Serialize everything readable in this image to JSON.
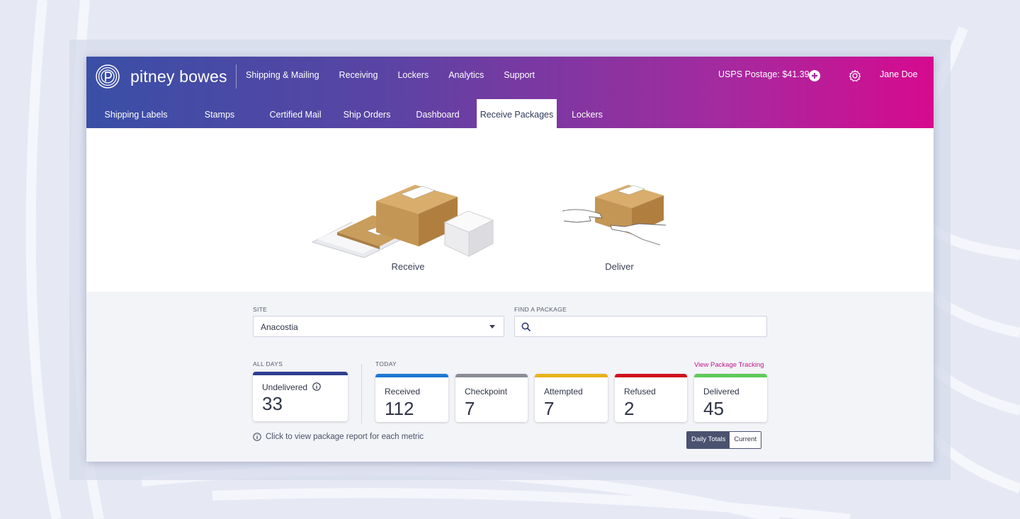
{
  "brand": {
    "name": "pitney bowes"
  },
  "top_nav": [
    "Shipping & Mailing",
    "Receiving",
    "Lockers",
    "Analytics",
    "Support"
  ],
  "postage": "USPS Postage: $41.39",
  "user": "Jane Doe",
  "sub_tabs": [
    {
      "label": "Shipping Labels",
      "active": false
    },
    {
      "label": "Stamps",
      "active": false
    },
    {
      "label": "Certified Mail",
      "active": false
    },
    {
      "label": "Ship Orders",
      "active": false
    },
    {
      "label": "Dashboard",
      "active": false
    },
    {
      "label": "Receive Packages",
      "active": true
    },
    {
      "label": "Lockers",
      "active": false
    }
  ],
  "actions": {
    "receive": "Receive",
    "deliver": "Deliver"
  },
  "site": {
    "label": "SITE",
    "value": "Anacostia"
  },
  "find": {
    "label": "FIND A PACKAGE",
    "value": "",
    "placeholder": ""
  },
  "all_days": {
    "label": "ALL DAYS",
    "metric": {
      "label": "Undelivered",
      "value": "33",
      "color": "#2e3f8f"
    }
  },
  "today": {
    "label": "TODAY",
    "link": "View Package Tracking",
    "metrics": [
      {
        "label": "Received",
        "value": "112",
        "color": "#1e78d2"
      },
      {
        "label": "Checkpoint",
        "value": "7",
        "color": "#8a8d94"
      },
      {
        "label": "Attempted",
        "value": "7",
        "color": "#e8b21b"
      },
      {
        "label": "Refused",
        "value": "2",
        "color": "#d0111b"
      },
      {
        "label": "Delivered",
        "value": "45",
        "color": "#5ec95a"
      }
    ]
  },
  "hint": "Click to view package report for each metric",
  "toggle": {
    "daily": "Daily Totals",
    "current": "Current",
    "selected": "Daily Totals"
  },
  "icons": [
    "pitney-bowes-logo-icon",
    "plus-circle-icon",
    "gear-icon",
    "chevron-down-icon",
    "search-icon",
    "info-icon",
    "package-stack-illustration",
    "hand-off-illustration"
  ]
}
